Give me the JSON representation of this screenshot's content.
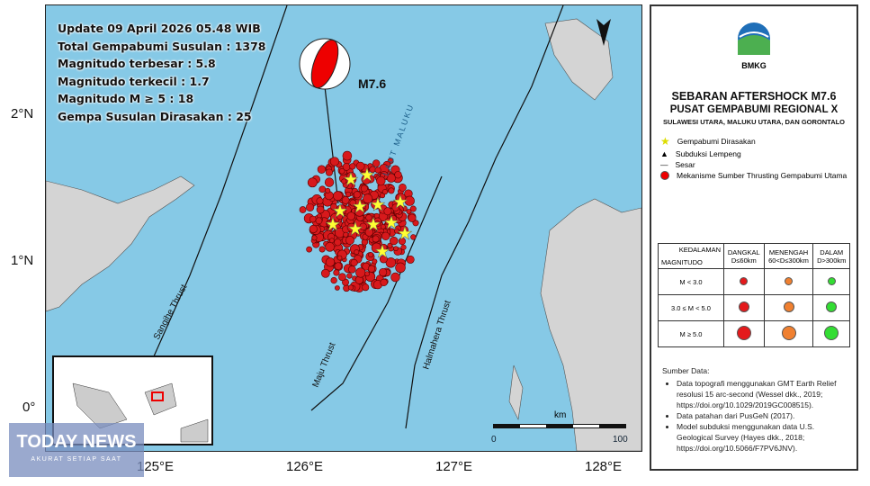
{
  "info": {
    "update": "Update 09 April 2026 05.48 WIB",
    "total": "Total Gempabumi Susulan : 1378",
    "max": "Magnitudo terbesar : 5.8",
    "min": "Magnitudo terkecil : 1.7",
    "m5": "Magnitudo M ≥ 5 : 18",
    "felt": "Gempa Susulan Dirasakan : 25"
  },
  "map": {
    "mainshock_label": "M7.6",
    "sea_label": "LAUT MALUKU",
    "faults": [
      "Sangihe Thrust",
      "Maju Thrust",
      "Halmahera Thrust"
    ],
    "scale": {
      "unit": "km",
      "start": "0",
      "end": "100"
    },
    "x_ticks": [
      "125°E",
      "126°E",
      "127°E",
      "128°E"
    ],
    "y_ticks": [
      "2°N",
      "1°N",
      "0°"
    ],
    "colors": {
      "sea": "#86c9e6",
      "land": "#d4d4d4",
      "shallow": "#d7191c",
      "star": "#ffff33"
    }
  },
  "legend": {
    "logo": "BMKG",
    "title": "SEBARAN AFTERSHOCK M7.6",
    "subtitle": "PUSAT GEMPABUMI REGIONAL X",
    "region": "SULAWESI UTARA, MALUKU UTARA, DAN GORONTALO",
    "items": [
      "Gempabumi Dirasakan",
      "Subduksi Lempeng",
      "Sesar",
      "Mekanisme Sumber Thrusting Gempabumi Utama"
    ],
    "table": {
      "corner_top": "KEDALAMAN",
      "corner_bottom": "MAGNITUDO",
      "cols": [
        {
          "name": "DANGKAL",
          "range": "D≤60km",
          "color": "#e41a1c"
        },
        {
          "name": "MENENGAH",
          "range": "60<D≤300km",
          "color": "#f08030"
        },
        {
          "name": "DALAM",
          "range": "D>300km",
          "color": "#33dd33"
        }
      ],
      "rows": [
        "M < 3.0",
        "3.0 ≤ M < 5.0",
        "M ≥ 5.0"
      ]
    },
    "sources_title": "Sumber Data:",
    "sources": [
      "Data topografi menggunakan GMT Earth Relief resolusi 15 arc-second (Wessel dkk., 2019; https://doi.org/10.1029/2019GC008515).",
      "Data patahan dari PusGeN (2017).",
      "Model subduksi menggunakan data U.S. Geological Survey (Hayes dkk., 2018; https://doi.org/10.5066/F7PV6JNV)."
    ]
  },
  "watermark": {
    "name": "TODAY NEWS",
    "tagline": "AKURAT SETIAP SAAT"
  }
}
